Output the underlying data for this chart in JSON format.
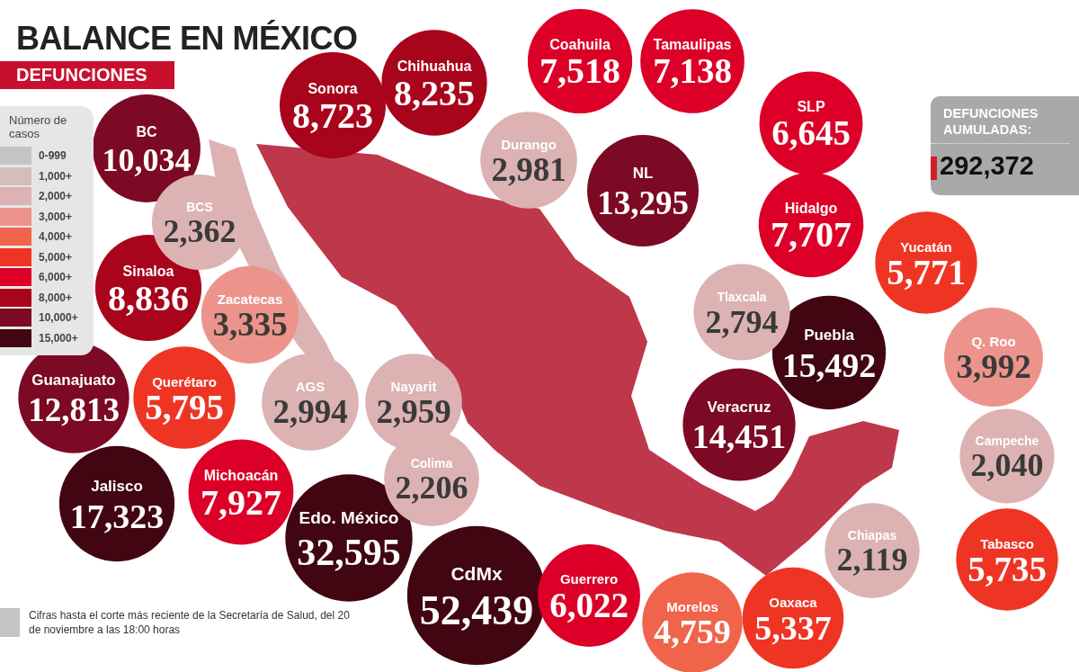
{
  "chart_data": {
    "type": "other",
    "title": "BALANCE EN MÉXICO",
    "subtitle": "DEFUNCIONES",
    "legend_title": "Número de casos",
    "legend": "top left",
    "categories": [
      "BC",
      "BCS",
      "Sonora",
      "Chihuahua",
      "Coahuila",
      "Tamaulipas",
      "Durango",
      "NL",
      "SLP",
      "Hidalgo",
      "Yucatán",
      "Tlaxcala",
      "Q. Roo",
      "Puebla",
      "Sinaloa",
      "Zacatecas",
      "Querétaro",
      "AGS",
      "Nayarit",
      "Guanajuato",
      "Veracruz",
      "Campeche",
      "Colima",
      "Jalisco",
      "Michoacán",
      "Edo. México",
      "CdMx",
      "Guerrero",
      "Chiapas",
      "Tabasco",
      "Morelos",
      "Oaxaca"
    ],
    "series": [
      {
        "name": "0-999",
        "color": "#c4c4c4",
        "values": [
          null,
          null,
          null,
          null,
          null,
          null,
          null,
          null,
          null,
          null,
          null,
          null,
          null,
          null,
          null,
          null,
          null,
          null,
          null,
          null,
          null,
          null,
          null,
          null,
          null,
          null,
          null,
          null,
          null,
          null,
          null,
          null
        ]
      },
      {
        "name": "1,000+",
        "color": "#d3bdbd",
        "values": [
          null,
          null,
          null,
          null,
          null,
          null,
          null,
          null,
          null,
          null,
          null,
          null,
          null,
          null,
          null,
          null,
          null,
          null,
          null,
          null,
          null,
          null,
          null,
          null,
          null,
          null,
          null,
          null,
          null,
          null,
          null,
          null
        ]
      },
      {
        "name": "2,000+",
        "color": "#dcb2b2",
        "values": [
          null,
          2362,
          null,
          null,
          null,
          null,
          2981,
          null,
          null,
          null,
          null,
          2794,
          null,
          null,
          null,
          null,
          null,
          2994,
          2959,
          null,
          null,
          2040,
          2206,
          null,
          null,
          null,
          null,
          null,
          2119,
          null,
          null,
          null
        ],
        "value_labels": [
          null,
          "2,362",
          null,
          null,
          null,
          null,
          "2,981",
          null,
          null,
          null,
          null,
          "2,794",
          null,
          null,
          null,
          null,
          null,
          "2,994",
          "2,959",
          null,
          null,
          "2,040",
          "2,206",
          null,
          null,
          null,
          null,
          null,
          "2,119",
          null,
          null,
          null
        ]
      },
      {
        "name": "3,000+",
        "color": "#ec948c",
        "values": [
          null,
          null,
          null,
          null,
          null,
          null,
          null,
          null,
          null,
          null,
          null,
          null,
          3992,
          null,
          null,
          3335,
          null,
          null,
          null,
          null,
          null,
          null,
          null,
          null,
          null,
          null,
          null,
          null,
          null,
          null,
          null,
          null
        ],
        "value_labels": [
          null,
          null,
          null,
          null,
          null,
          null,
          null,
          null,
          null,
          null,
          null,
          null,
          "3,992",
          null,
          null,
          "3,335",
          null,
          null,
          null,
          null,
          null,
          null,
          null,
          null,
          null,
          null,
          null,
          null,
          null,
          null,
          null,
          null
        ]
      },
      {
        "name": "4,000+",
        "color": "#f0644c",
        "values": [
          null,
          null,
          null,
          null,
          null,
          null,
          null,
          null,
          null,
          null,
          null,
          null,
          null,
          null,
          null,
          null,
          null,
          null,
          null,
          null,
          null,
          null,
          null,
          null,
          null,
          null,
          null,
          null,
          null,
          null,
          4759,
          null
        ],
        "value_labels": [
          null,
          null,
          null,
          null,
          null,
          null,
          null,
          null,
          null,
          null,
          null,
          null,
          null,
          null,
          null,
          null,
          null,
          null,
          null,
          null,
          null,
          null,
          null,
          null,
          null,
          null,
          null,
          null,
          null,
          null,
          "4,759",
          null
        ]
      },
      {
        "name": "5,000+",
        "color": "#ee3524",
        "values": [
          null,
          null,
          null,
          null,
          null,
          null,
          null,
          null,
          null,
          null,
          5771,
          null,
          null,
          null,
          null,
          null,
          5795,
          null,
          null,
          null,
          null,
          null,
          null,
          null,
          null,
          null,
          null,
          null,
          null,
          5735,
          null,
          5337
        ],
        "value_labels": [
          null,
          null,
          null,
          null,
          null,
          null,
          null,
          null,
          null,
          null,
          "5,771",
          null,
          null,
          null,
          null,
          null,
          "5,795",
          null,
          null,
          null,
          null,
          null,
          null,
          null,
          null,
          null,
          null,
          null,
          null,
          "5,735",
          null,
          "5,337"
        ]
      },
      {
        "name": "6,000+",
        "color": "#dc0028",
        "values": [
          null,
          null,
          null,
          null,
          7518,
          7138,
          null,
          null,
          6645,
          7707,
          null,
          null,
          null,
          null,
          null,
          null,
          null,
          null,
          null,
          null,
          null,
          null,
          null,
          null,
          7927,
          null,
          null,
          6022,
          null,
          null,
          null,
          null
        ],
        "value_labels": [
          null,
          null,
          null,
          null,
          "7,518",
          "7,138",
          null,
          null,
          "6,645",
          "7,707",
          null,
          null,
          null,
          null,
          null,
          null,
          null,
          null,
          null,
          null,
          null,
          null,
          null,
          null,
          "7,927",
          null,
          null,
          "6,022",
          null,
          null,
          null,
          null
        ]
      },
      {
        "name": "8,000+",
        "color": "#a8041c",
        "values": [
          null,
          null,
          8723,
          8235,
          null,
          null,
          null,
          null,
          null,
          null,
          null,
          null,
          null,
          null,
          8836,
          null,
          null,
          null,
          null,
          null,
          null,
          null,
          null,
          null,
          null,
          null,
          null,
          null,
          null,
          null,
          null,
          null
        ],
        "value_labels": [
          null,
          null,
          "8,723",
          "8,235",
          null,
          null,
          null,
          null,
          null,
          null,
          null,
          null,
          null,
          null,
          "8,836",
          null,
          null,
          null,
          null,
          null,
          null,
          null,
          null,
          null,
          null,
          null,
          null,
          null,
          null,
          null,
          null,
          null
        ]
      },
      {
        "name": "10,000+",
        "color": "#7c0a24",
        "values": [
          10034,
          null,
          null,
          null,
          null,
          null,
          null,
          13295,
          null,
          null,
          null,
          null,
          null,
          null,
          null,
          null,
          null,
          null,
          null,
          12813,
          14451,
          null,
          null,
          null,
          null,
          null,
          null,
          null,
          null,
          null,
          null,
          null
        ],
        "value_labels": [
          "10,034",
          null,
          null,
          null,
          null,
          null,
          null,
          "13,295",
          null,
          null,
          null,
          null,
          null,
          null,
          null,
          null,
          null,
          null,
          null,
          "12,813",
          "14,451",
          null,
          null,
          null,
          null,
          null,
          null,
          null,
          null,
          null,
          null,
          null
        ]
      },
      {
        "name": "15,000+",
        "color": "#420512",
        "values": [
          null,
          null,
          null,
          null,
          null,
          null,
          null,
          null,
          null,
          null,
          null,
          null,
          null,
          15492,
          null,
          null,
          null,
          null,
          null,
          null,
          null,
          null,
          null,
          17323,
          null,
          32595,
          52439,
          null,
          null,
          null,
          null,
          null
        ],
        "value_labels": [
          null,
          null,
          null,
          null,
          null,
          null,
          null,
          null,
          null,
          null,
          null,
          null,
          null,
          "15,492",
          null,
          null,
          null,
          null,
          null,
          null,
          null,
          null,
          null,
          "17,323",
          null,
          "32,595",
          "52,439",
          null,
          null,
          null,
          null,
          null
        ]
      }
    ],
    "annotations": [
      "DEFUNCIONES AUMULADAS:",
      "292,372",
      "Cifras hasta el corte más reciente de la Secretaría de Salud, del 20 de noviembre a las 18:00 horas"
    ]
  }
}
